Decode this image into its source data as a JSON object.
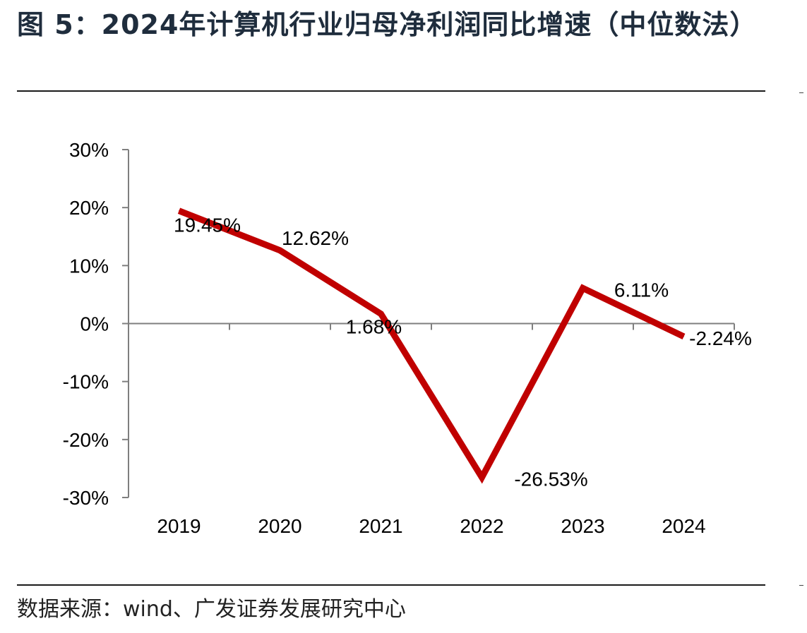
{
  "figure": {
    "title": "图 5：2024年计算机行业归母净利润同比增速（中位数法）",
    "source": "数据来源：wind、广发证券发展研究中心"
  },
  "chart_data": {
    "type": "line",
    "title": "",
    "xlabel": "",
    "ylabel": "",
    "categories": [
      "2019",
      "2020",
      "2021",
      "2022",
      "2023",
      "2024"
    ],
    "series": [
      {
        "values": [
          19.45,
          12.62,
          1.68,
          -26.53,
          6.11,
          -2.24
        ],
        "data_labels": [
          "19.45%",
          "12.62%",
          "1.68%",
          "-26.53%",
          "6.11%",
          "-2.24%"
        ],
        "color": "#c00000"
      }
    ],
    "ylim": [
      -30,
      30
    ],
    "yticks": [
      30,
      20,
      10,
      0,
      -10,
      -20,
      -30
    ],
    "ytick_labels": [
      "30%",
      "20%",
      "10%",
      "0%",
      "-10%",
      "-20%",
      "-30%"
    ],
    "grid": false,
    "legend": "none"
  }
}
